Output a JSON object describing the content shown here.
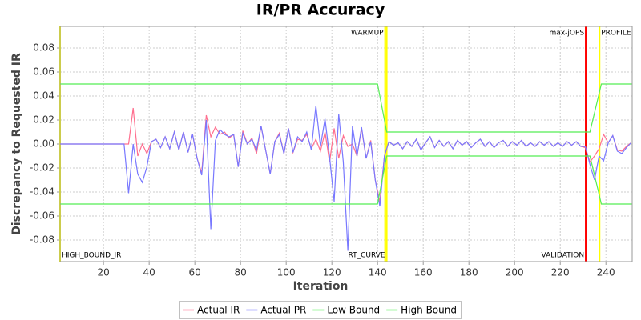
{
  "chart_data": {
    "type": "line",
    "title": "IR/PR Accuracy",
    "x_label": "Iteration",
    "y_label": "Discrepancy to Requested IR",
    "xlim": [
      1,
      251.5
    ],
    "ylim": [
      -0.098,
      0.098
    ],
    "xticks": [
      20,
      40,
      60,
      80,
      100,
      120,
      140,
      160,
      180,
      200,
      220,
      240
    ],
    "yticks": [
      -0.08,
      -0.06,
      -0.04,
      -0.02,
      {
        "value": 0,
        "label": "0.00"
      },
      0.02,
      0.04,
      0.06,
      0.08
    ],
    "grid": true,
    "legend": "bottom",
    "markers": [
      {
        "x": 1,
        "label": "HIGH_BOUND_IR",
        "color": "#ffff00",
        "position": "bottom",
        "align": "left"
      },
      {
        "x": 143.3,
        "label": "WARMUP",
        "color": "#ffff00",
        "position": "top",
        "align": "right"
      },
      {
        "x": 144,
        "label": "RT_CURVE",
        "color": "#ffff00",
        "position": "bottom",
        "align": "right"
      },
      {
        "x": 231.2,
        "label": "max-jOPS",
        "color": "#ff0000",
        "position": "top",
        "align": "right"
      },
      {
        "x": 231.2,
        "label": "VALIDATION",
        "color": "#ff0000",
        "position": "bottom",
        "align": "right"
      },
      {
        "x": 237.2,
        "label": "PROFILE",
        "color": "#ffff00",
        "position": "top",
        "align": "left"
      }
    ],
    "series": [
      {
        "name": "Actual IR",
        "color": "#ff6f8f",
        "x": [
          1,
          3,
          5,
          7,
          9,
          11,
          13,
          15,
          17,
          19,
          21,
          23,
          25,
          27,
          29,
          31,
          33,
          35,
          37,
          39,
          41,
          43,
          45,
          47,
          49,
          51,
          53,
          55,
          57,
          59,
          61,
          63,
          65,
          67,
          69,
          71,
          73,
          75,
          77,
          79,
          81,
          83,
          85,
          87,
          89,
          91,
          93,
          95,
          97,
          99,
          101,
          103,
          105,
          107,
          109,
          111,
          113,
          115,
          117,
          119,
          121,
          123,
          125,
          127,
          129,
          131,
          133,
          135,
          137,
          139,
          141,
          143,
          145,
          147,
          149,
          151,
          153,
          155,
          157,
          159,
          161,
          163,
          165,
          167,
          169,
          171,
          173,
          175,
          177,
          179,
          181,
          183,
          185,
          187,
          189,
          191,
          193,
          195,
          197,
          199,
          201,
          203,
          205,
          207,
          209,
          211,
          213,
          215,
          217,
          219,
          221,
          223,
          225,
          227,
          229,
          231,
          233,
          235,
          237,
          239,
          241,
          243,
          245,
          247,
          249,
          251
        ],
        "values": [
          0,
          0,
          0,
          0,
          0,
          0,
          0,
          0,
          0,
          0,
          0,
          0,
          0,
          0,
          0,
          0,
          0.03,
          -0.01,
          0,
          -0.008,
          0.002,
          0.004,
          -0.003,
          0.006,
          -0.004,
          0.01,
          -0.005,
          0.01,
          -0.007,
          0.008,
          -0.012,
          -0.024,
          0.024,
          0.006,
          0.014,
          0.008,
          0.01,
          0.005,
          0.008,
          -0.019,
          0.011,
          0,
          0.005,
          -0.008,
          0.015,
          -0.005,
          -0.025,
          0.002,
          0.009,
          -0.008,
          0.013,
          -0.007,
          0.004,
          0.003,
          0.008,
          -0.004,
          0.004,
          -0.006,
          0.01,
          -0.015,
          0.013,
          -0.012,
          0.007,
          -0.002,
          0,
          -0.01,
          0.013,
          -0.012,
          0.003,
          -0.03,
          -0.048,
          -0.01,
          0.002,
          -0.001,
          0.001,
          -0.004,
          0.002,
          -0.002,
          0.004,
          -0.005,
          0.001,
          0.006,
          -0.003,
          0.003,
          -0.002,
          0.002,
          -0.004,
          0.003,
          -0.001,
          0.002,
          -0.003,
          0.001,
          0.004,
          -0.002,
          0.002,
          -0.003,
          0.001,
          0.003,
          -0.002,
          0.002,
          -0.001,
          0.003,
          -0.002,
          0.001,
          -0.002,
          0.002,
          -0.001,
          0.002,
          -0.002,
          0.001,
          -0.002,
          0.002,
          -0.001,
          0.002,
          -0.002,
          -0.003,
          -0.015,
          -0.01,
          -0.004,
          0.008,
          0.001,
          0.007,
          -0.005,
          -0.006,
          -0.002,
          0.001
        ]
      },
      {
        "name": "Actual PR",
        "color": "#7878ff",
        "x": [
          1,
          3,
          5,
          7,
          9,
          11,
          13,
          15,
          17,
          19,
          21,
          23,
          25,
          27,
          29,
          31,
          33,
          35,
          37,
          39,
          41,
          43,
          45,
          47,
          49,
          51,
          53,
          55,
          57,
          59,
          61,
          63,
          65,
          67,
          69,
          71,
          73,
          75,
          77,
          79,
          81,
          83,
          85,
          87,
          89,
          91,
          93,
          95,
          97,
          99,
          101,
          103,
          105,
          107,
          109,
          111,
          113,
          115,
          117,
          119,
          121,
          123,
          125,
          127,
          129,
          131,
          133,
          135,
          137,
          139,
          141,
          143,
          145,
          147,
          149,
          151,
          153,
          155,
          157,
          159,
          161,
          163,
          165,
          167,
          169,
          171,
          173,
          175,
          177,
          179,
          181,
          183,
          185,
          187,
          189,
          191,
          193,
          195,
          197,
          199,
          201,
          203,
          205,
          207,
          209,
          211,
          213,
          215,
          217,
          219,
          221,
          223,
          225,
          227,
          229,
          231,
          233,
          235,
          237,
          239,
          241,
          243,
          245,
          247,
          249,
          251
        ],
        "values": [
          0,
          0,
          0,
          0,
          0,
          0,
          0,
          0,
          0,
          0,
          0,
          0,
          0,
          0,
          0,
          -0.041,
          0,
          -0.025,
          -0.032,
          -0.019,
          0.002,
          0.004,
          -0.003,
          0.006,
          -0.004,
          0.01,
          -0.005,
          0.01,
          -0.007,
          0.008,
          -0.012,
          -0.026,
          0.02,
          -0.071,
          0.003,
          0.012,
          0.008,
          0.006,
          0.008,
          -0.019,
          0.009,
          0,
          0.004,
          -0.005,
          0.015,
          -0.005,
          -0.025,
          0.002,
          0.008,
          -0.008,
          0.013,
          -0.007,
          0.006,
          0.002,
          0.01,
          -0.005,
          0.032,
          -0.002,
          0.021,
          -0.011,
          -0.048,
          0.025,
          -0.015,
          -0.089,
          0.015,
          -0.01,
          0.014,
          -0.012,
          0.002,
          -0.03,
          -0.052,
          -0.01,
          0.002,
          -0.001,
          0.001,
          -0.004,
          0.002,
          -0.002,
          0.004,
          -0.005,
          0.001,
          0.006,
          -0.003,
          0.003,
          -0.002,
          0.002,
          -0.004,
          0.003,
          -0.001,
          0.002,
          -0.003,
          0.001,
          0.004,
          -0.002,
          0.002,
          -0.003,
          0.001,
          0.003,
          -0.002,
          0.002,
          -0.001,
          0.003,
          -0.002,
          0.001,
          -0.002,
          0.002,
          -0.001,
          0.002,
          -0.002,
          0.001,
          -0.002,
          0.002,
          -0.001,
          0.002,
          -0.002,
          -0.002,
          -0.017,
          -0.03,
          -0.01,
          -0.014,
          0.001,
          0.007,
          -0.006,
          -0.008,
          -0.003,
          0.001
        ]
      },
      {
        "name": "Low Bound",
        "color": "#55ee55",
        "x": [
          1,
          140,
          144,
          233,
          238,
          251.5
        ],
        "values": [
          -0.05,
          -0.05,
          -0.01,
          -0.01,
          -0.05,
          -0.05
        ]
      },
      {
        "name": "High Bound",
        "color": "#55ee55",
        "x": [
          1,
          140,
          144,
          233,
          238,
          251.5
        ],
        "values": [
          0.05,
          0.05,
          0.01,
          0.01,
          0.05,
          0.05
        ]
      }
    ]
  }
}
